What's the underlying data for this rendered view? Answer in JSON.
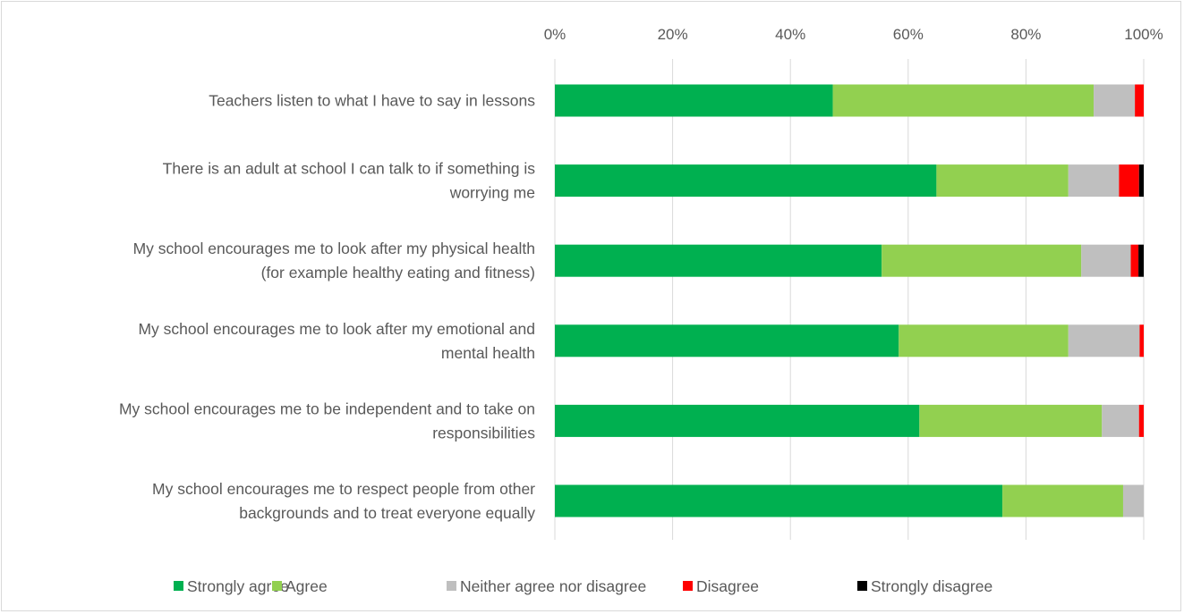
{
  "chart_data": {
    "type": "bar",
    "orientation": "horizontal",
    "stacked": "percent",
    "title": "",
    "xlabel": "",
    "ylabel": "",
    "xlim": [
      0,
      100
    ],
    "x_ticks": [
      "0%",
      "20%",
      "40%",
      "60%",
      "80%",
      "100%"
    ],
    "x_axis_position": "top",
    "grid": true,
    "legend_position": "bottom",
    "categories": [
      [
        "Teachers listen to what I have to say in lessons"
      ],
      [
        "There is an adult at school I can talk to if something is",
        "worrying me"
      ],
      [
        "My school encourages me to look after my physical health",
        "(for example healthy eating and fitness)"
      ],
      [
        "My school encourages me to look after my emotional and",
        "mental health"
      ],
      [
        "My school encourages me to be independent and to take on",
        "responsibilities"
      ],
      [
        "My school encourages me to respect people from other",
        "backgrounds and to treat everyone equally"
      ]
    ],
    "series": [
      {
        "name": "Strongly agree",
        "color": "#00b050",
        "values": [
          47.2,
          64.8,
          55.5,
          58.4,
          61.9,
          76.0
        ]
      },
      {
        "name": "Agree",
        "color": "#92d050",
        "values": [
          44.3,
          22.4,
          33.9,
          28.8,
          31.0,
          20.5
        ]
      },
      {
        "name": "Neither agree nor disagree",
        "color": "#bfbfbf",
        "values": [
          7.0,
          8.6,
          8.4,
          12.1,
          6.3,
          3.5
        ]
      },
      {
        "name": "Disagree",
        "color": "#ff0000",
        "values": [
          1.5,
          3.4,
          1.3,
          0.7,
          0.8,
          0.0
        ]
      },
      {
        "name": "Strongly disagree",
        "color": "#000000",
        "values": [
          0.0,
          0.8,
          0.9,
          0.0,
          0.0,
          0.0
        ]
      }
    ]
  }
}
